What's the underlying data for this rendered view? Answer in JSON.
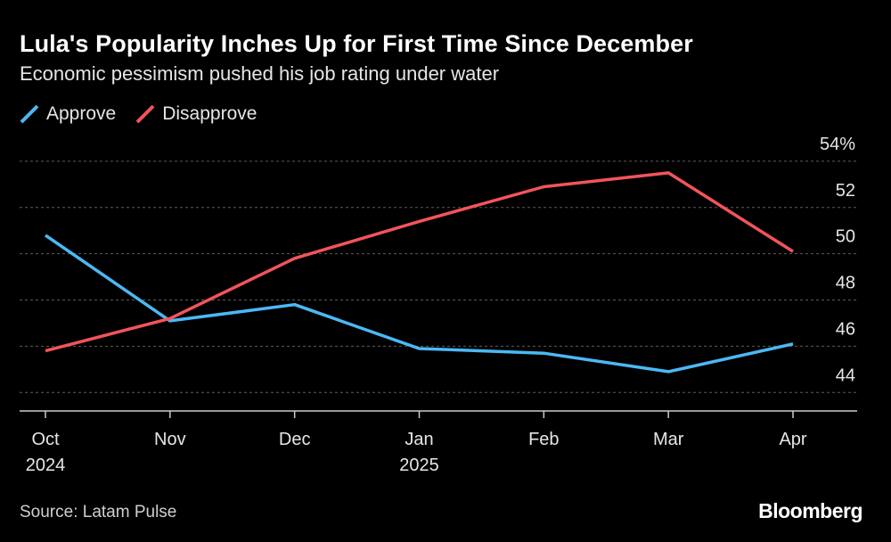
{
  "header": {
    "title": "Lula's Popularity Inches Up for First Time Since December",
    "subtitle": "Economic pessimism pushed his job rating under water"
  },
  "legend": [
    {
      "label": "Approve",
      "color": "#4cb8f5"
    },
    {
      "label": "Disapprove",
      "color": "#f2545b"
    }
  ],
  "footer": {
    "source": "Source: Latam Pulse",
    "brand": "Bloomberg"
  },
  "chart_data": {
    "type": "line",
    "title": "Lula's Popularity Inches Up for First Time Since December",
    "subtitle": "Economic pessimism pushed his job rating under water",
    "x": [
      "2024-10",
      "2024-11",
      "2024-12",
      "2025-01",
      "2025-02",
      "2025-03",
      "2025-04"
    ],
    "x_tick_labels": [
      {
        "line1": "Oct",
        "line2": "2024"
      },
      {
        "line1": "Nov",
        "line2": ""
      },
      {
        "line1": "Dec",
        "line2": ""
      },
      {
        "line1": "Jan",
        "line2": "2025"
      },
      {
        "line1": "Feb",
        "line2": ""
      },
      {
        "line1": "Mar",
        "line2": ""
      },
      {
        "line1": "Apr",
        "line2": ""
      }
    ],
    "series": [
      {
        "name": "Approve",
        "color": "#4cb8f5",
        "values": [
          50.8,
          47.1,
          47.8,
          45.9,
          45.7,
          44.9,
          46.1
        ]
      },
      {
        "name": "Disapprove",
        "color": "#f2545b",
        "values": [
          45.8,
          47.2,
          49.8,
          51.4,
          52.9,
          53.5,
          50.1
        ]
      }
    ],
    "ylim": [
      43.2,
      55
    ],
    "y_ticks": [
      44,
      46,
      48,
      50,
      52,
      54
    ],
    "y_tick_suffix_top": "%",
    "y_axis_side": "right",
    "grid": true,
    "legend_position": "top-left"
  }
}
